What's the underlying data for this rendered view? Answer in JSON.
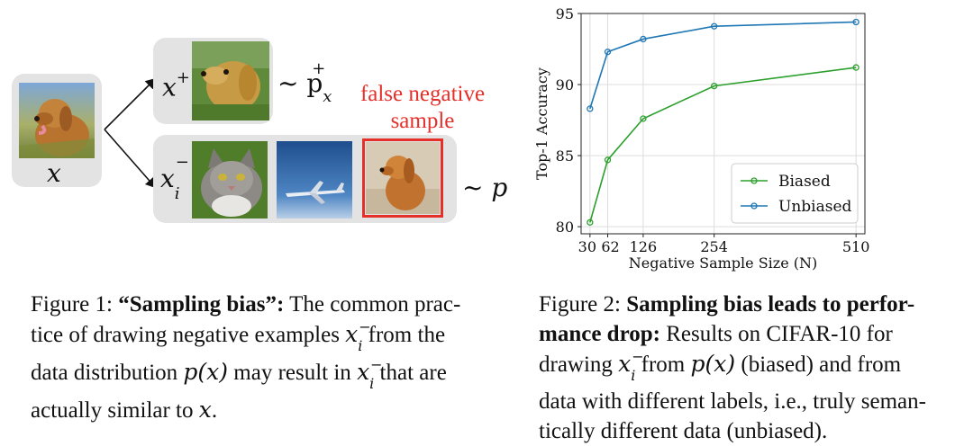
{
  "figure1": {
    "anchor_label": "x",
    "positive_label": "x",
    "positive_sup": "+",
    "positive_dist": "~ p",
    "positive_dist_sub": "x",
    "positive_dist_sup": "+",
    "negative_label": "x",
    "negative_sub": "i",
    "negative_sup": "−",
    "negative_dist": "~ p",
    "false_negative_line1": "false negative",
    "false_negative_line2": "sample",
    "caption": {
      "prefix": "Figure 1: ",
      "bold": "“Sampling bias”:",
      "line1_rest": " The common prac-",
      "line2a": "tice of drawing negative examples ",
      "line2b": " from the",
      "line3a": "data distribution ",
      "line3b": " may result in ",
      "line3c": " that are",
      "line4a": "actually similar to ",
      "line4b": ".",
      "math_xi": "x",
      "math_sub": "i",
      "math_sup": "−",
      "math_px": "p(x)",
      "math_x": "x"
    }
  },
  "figure2": {
    "chart_data": {
      "type": "line",
      "title": "",
      "xlabel": "Negative Sample Size (N)",
      "ylabel": "Top-1 Accuracy",
      "x": [
        30,
        62,
        126,
        254,
        510
      ],
      "x_tick_labels": [
        "30",
        "62",
        "126",
        "254",
        "510"
      ],
      "xlim": [
        14,
        526
      ],
      "ylim": [
        79.5,
        95
      ],
      "y_ticks": [
        80,
        85,
        90,
        95
      ],
      "grid": true,
      "legend_position": "lower-right",
      "series": [
        {
          "name": "Biased",
          "color": "#2ca02c",
          "values": [
            80.3,
            84.7,
            87.6,
            89.9,
            91.2
          ]
        },
        {
          "name": "Unbiased",
          "color": "#1f77b4",
          "values": [
            88.3,
            92.3,
            93.2,
            94.1,
            94.4
          ]
        }
      ]
    },
    "caption": {
      "prefix": "Figure 2: ",
      "bold1": "Sampling bias leads to perfor-",
      "bold2": "mance drop:",
      "line2_rest": " Results on CIFAR-10 for",
      "line3a": "drawing ",
      "line3b": " from ",
      "line3c": " (biased) and from",
      "line4": "data with different labels, i.e., truly seman-",
      "line5": "tically different data (unbiased).",
      "math_xi": "x",
      "math_sub": "i",
      "math_sup": "−",
      "math_px": "p(x)"
    }
  }
}
